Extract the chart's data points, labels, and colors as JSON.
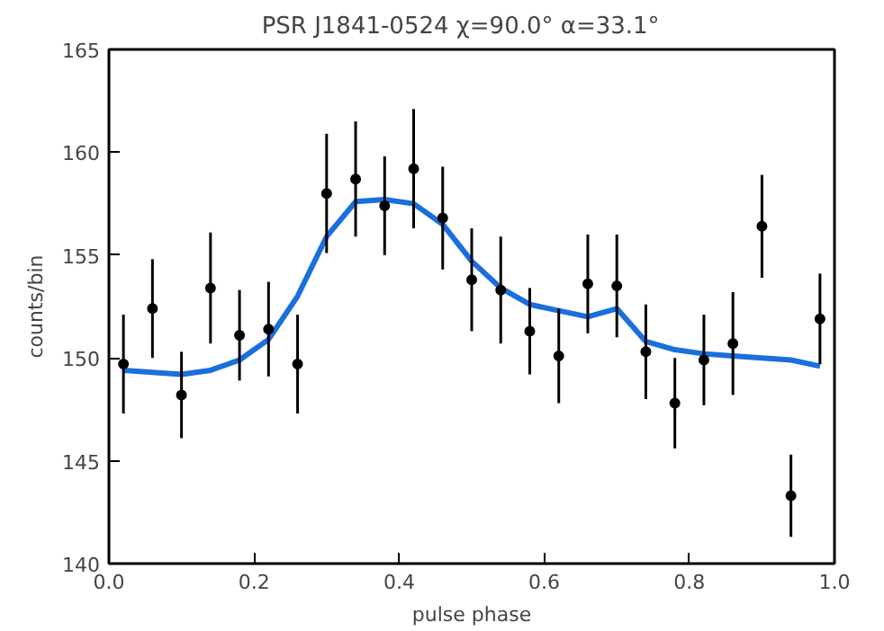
{
  "chart_data": {
    "type": "scatter",
    "title": "PSR J1841-0524   χ=90.0°  α=33.1°",
    "xlabel": "pulse phase",
    "ylabel": "counts/bin",
    "xlim": [
      0,
      1
    ],
    "ylim": [
      140,
      165
    ],
    "xticks": [
      {
        "value": 0,
        "label": "0.0"
      },
      0.2,
      0.4,
      0.6,
      0.8,
      {
        "value": 1,
        "label": "1.0"
      }
    ],
    "yticks": [
      140,
      145,
      150,
      155,
      160,
      165
    ],
    "grid": false,
    "series": [
      {
        "color": "#000000",
        "marker": "circle",
        "x": [
          0.02,
          0.06,
          0.1,
          0.14,
          0.18,
          0.22,
          0.26,
          0.3,
          0.34,
          0.38,
          0.42,
          0.46,
          0.5,
          0.54,
          0.58,
          0.62,
          0.66,
          0.7,
          0.74,
          0.78,
          0.82,
          0.86,
          0.9,
          0.94,
          0.98
        ],
        "values": [
          149.7,
          152.4,
          148.2,
          153.4,
          151.1,
          151.4,
          149.7,
          158.0,
          158.7,
          157.4,
          159.2,
          156.8,
          153.8,
          153.3,
          151.3,
          150.1,
          153.6,
          153.5,
          150.3,
          147.8,
          149.9,
          150.7,
          156.4,
          143.3,
          151.9
        ],
        "errors": [
          2.4,
          2.4,
          2.1,
          2.7,
          2.2,
          2.3,
          2.4,
          2.9,
          2.8,
          2.4,
          2.9,
          2.5,
          2.5,
          2.6,
          2.1,
          2.3,
          2.4,
          2.5,
          2.3,
          2.2,
          2.2,
          2.5,
          2.5,
          2.0,
          2.2
        ]
      },
      {
        "type": "line",
        "color": "#1a6fdc",
        "line_style": "solid",
        "marker": "none",
        "x": [
          0.02,
          0.06,
          0.1,
          0.14,
          0.18,
          0.22,
          0.26,
          0.3,
          0.34,
          0.38,
          0.42,
          0.46,
          0.5,
          0.54,
          0.58,
          0.62,
          0.66,
          0.7,
          0.74,
          0.78,
          0.82,
          0.86,
          0.9,
          0.94,
          0.98
        ],
        "values": [
          149.4,
          149.3,
          149.2,
          149.4,
          149.9,
          150.9,
          153.0,
          155.9,
          157.6,
          157.7,
          157.5,
          156.5,
          154.7,
          153.4,
          152.6,
          152.3,
          152.0,
          152.4,
          150.8,
          150.4,
          150.2,
          150.1,
          150.0,
          149.9,
          149.6
        ]
      }
    ]
  }
}
